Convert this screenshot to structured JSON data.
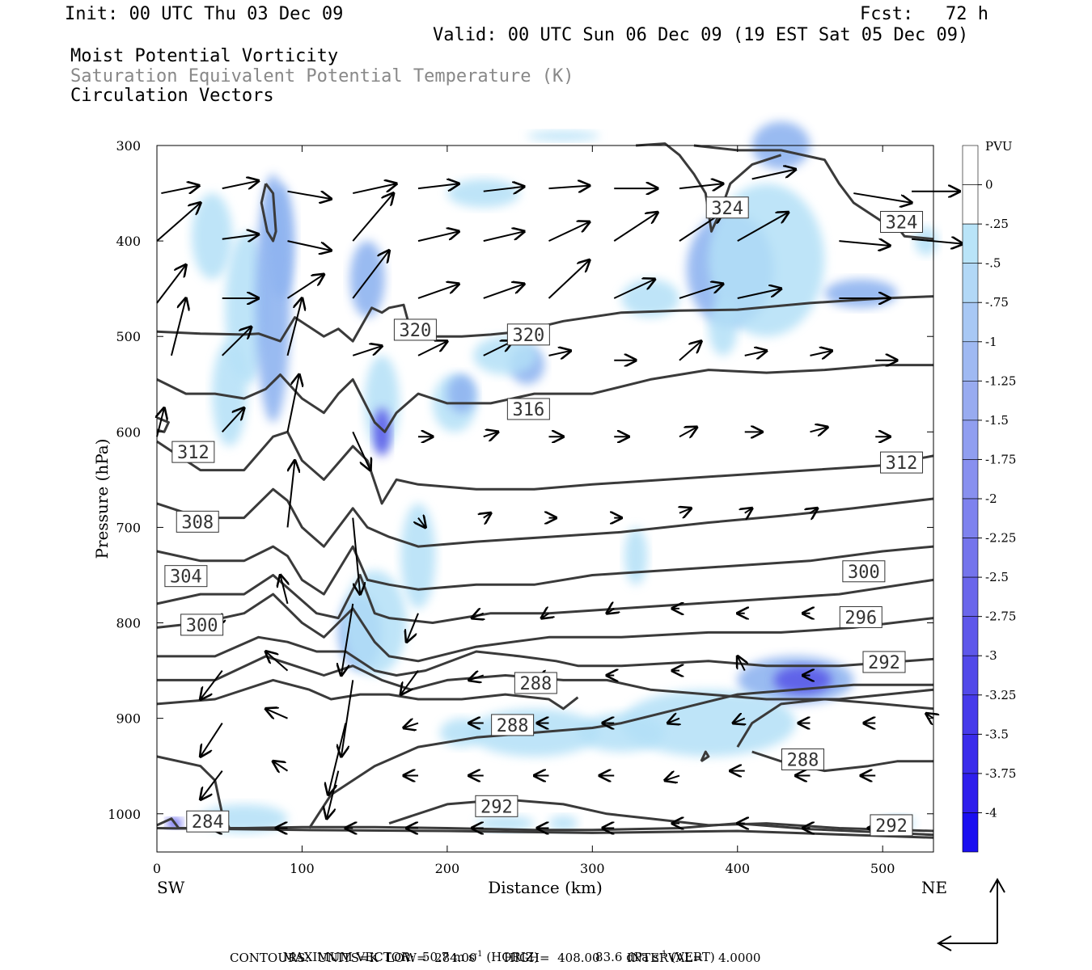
{
  "header": {
    "init": "Init: 00 UTC Thu 03 Dec 09",
    "fcst": "Fcst:   72 h",
    "valid": "Valid: 00 UTC Sun 06 Dec 09 (19 EST Sat 05 Dec 09)",
    "line1": "Moist Potential Vorticity",
    "line2": "Saturation Equivalent Potential Temperature (K)",
    "line3": "Circulation Vectors"
  },
  "colors": {
    "contour": "#3a3a3a",
    "shade_light": "#b3e0f7",
    "shade_mid": "#8fb4f0",
    "shade_dark": "#5a5ae8",
    "shade_core": "#1a1ae6"
  },
  "chart_data": {
    "type": "cross-section",
    "xlabel": "Distance (km)",
    "ylabel": "Pressure (hPa)",
    "xlim": [
      0,
      535
    ],
    "ylim": [
      1040,
      300
    ],
    "x_ticks": [
      0,
      100,
      200,
      300,
      400,
      500
    ],
    "y_ticks": [
      300,
      400,
      500,
      600,
      700,
      800,
      900,
      1000
    ],
    "x_end_labels": {
      "left": "SW",
      "right": "NE"
    },
    "colorbar": {
      "unit": "PVU",
      "labels": [
        "0",
        "-.25",
        "-.5",
        "-.75",
        "-1",
        "-1.25",
        "-1.5",
        "-1.75",
        "-2",
        "-2.25",
        "-2.5",
        "-2.75",
        "-3",
        "-3.25",
        "-3.5",
        "-3.75",
        "-4"
      ]
    },
    "contour_labels": [
      {
        "text": "324",
        "x": 393,
        "p": 365
      },
      {
        "text": "324",
        "x": 513,
        "p": 380
      },
      {
        "text": "320",
        "x": 178,
        "p": 493
      },
      {
        "text": "320",
        "x": 256,
        "p": 498
      },
      {
        "text": "316",
        "x": 256,
        "p": 576
      },
      {
        "text": "312",
        "x": 25,
        "p": 621
      },
      {
        "text": "312",
        "x": 513,
        "p": 632
      },
      {
        "text": "308",
        "x": 28,
        "p": 694
      },
      {
        "text": "304",
        "x": 20,
        "p": 751
      },
      {
        "text": "300",
        "x": 31,
        "p": 802
      },
      {
        "text": "300",
        "x": 487,
        "p": 746
      },
      {
        "text": "296",
        "x": 485,
        "p": 794
      },
      {
        "text": "292",
        "x": 501,
        "p": 841
      },
      {
        "text": "288",
        "x": 261,
        "p": 863
      },
      {
        "text": "288",
        "x": 245,
        "p": 907
      },
      {
        "text": "288",
        "x": 445,
        "p": 943
      },
      {
        "text": "292",
        "x": 234,
        "p": 992
      },
      {
        "text": "284",
        "x": 35,
        "p": 1008
      },
      {
        "text": "292",
        "x": 506,
        "p": 1012
      }
    ],
    "footer": {
      "max_vector": "MAXIMUM VECTOR:  50.7 m s",
      "horiz": "(HORIZ)",
      "max_vert": "83.6 dPa s",
      "vert": "(VERT)",
      "exp": "-1",
      "contours": "CONTOURS:  UNITS=K  LOW=  284.00       HIGH=  408.00       INTERVAL=    4.0000"
    }
  }
}
